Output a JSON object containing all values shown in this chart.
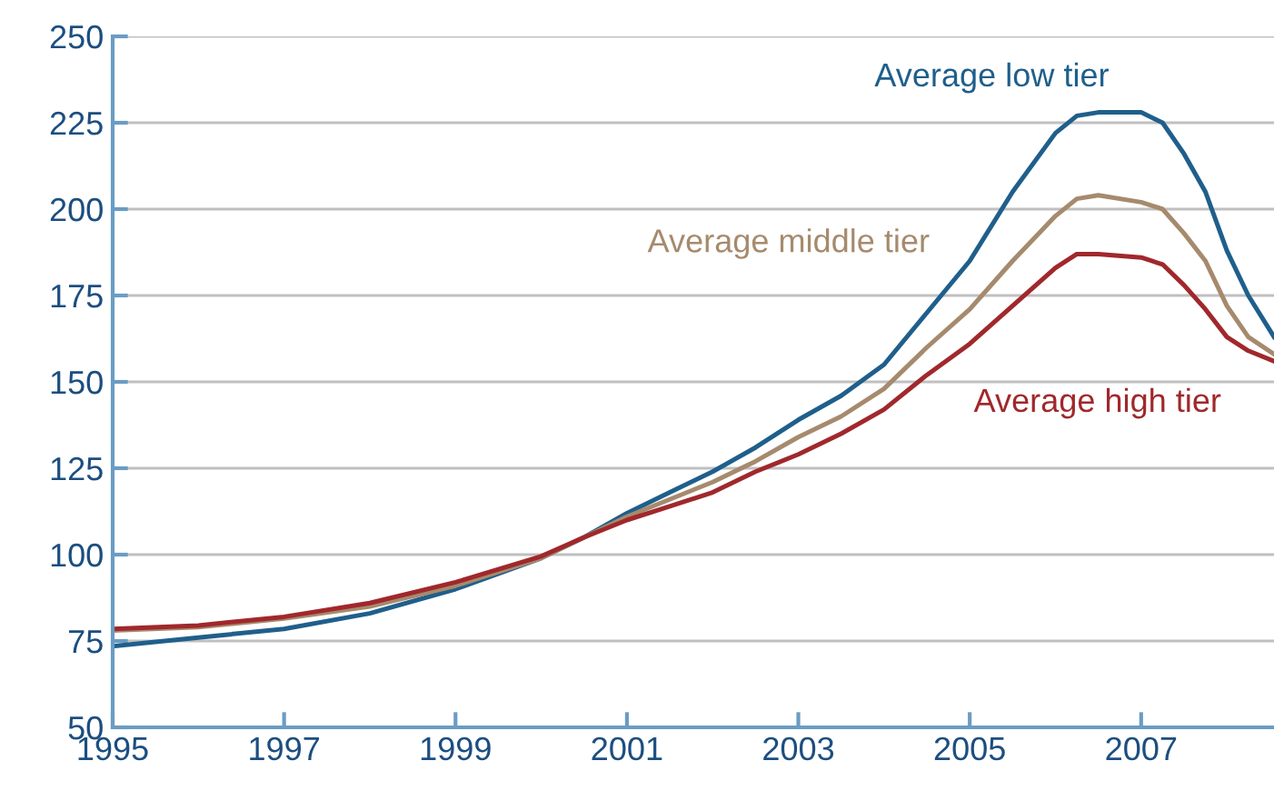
{
  "chart_data": {
    "type": "line",
    "xlim": [
      1995,
      2008.55
    ],
    "xticks": [
      1995,
      1997,
      1999,
      2001,
      2003,
      2005,
      2007
    ],
    "ylim": [
      50,
      250
    ],
    "yticks": [
      50,
      75,
      100,
      125,
      150,
      175,
      200,
      225,
      250
    ],
    "grid": "y",
    "legend": false,
    "series": [
      {
        "name": "Average low tier",
        "color": "#1f5f8b",
        "x": [
          1995,
          1996,
          1997,
          1998,
          1999,
          2000,
          2000.5,
          2001,
          2001.5,
          2002,
          2002.5,
          2003,
          2003.5,
          2004,
          2004.5,
          2005,
          2005.5,
          2006,
          2006.25,
          2006.5,
          2007,
          2007.25,
          2007.5,
          2007.75,
          2008,
          2008.25,
          2008.55
        ],
        "values": [
          73.5,
          76,
          78.5,
          83,
          90,
          99,
          105,
          112,
          118,
          124,
          131,
          139,
          146,
          155,
          170,
          185,
          205,
          222,
          227,
          228,
          228,
          225,
          216,
          205,
          188,
          175,
          163
        ]
      },
      {
        "name": "Average middle tier",
        "color": "#a68a6d",
        "x": [
          1995,
          1996,
          1997,
          1998,
          1999,
          2000,
          2000.5,
          2001,
          2001.5,
          2002,
          2002.5,
          2003,
          2003.5,
          2004,
          2004.5,
          2005,
          2005.5,
          2006,
          2006.25,
          2006.5,
          2007,
          2007.25,
          2007.5,
          2007.75,
          2008,
          2008.25,
          2008.55
        ],
        "values": [
          78,
          79,
          81.5,
          85,
          91,
          99,
          105,
          111,
          116,
          121,
          127,
          134,
          140,
          148,
          160,
          171,
          185,
          198,
          203,
          204,
          202,
          200,
          193,
          185,
          172,
          163,
          158
        ]
      },
      {
        "name": "Average high tier",
        "color": "#a0282c",
        "x": [
          1995,
          1996,
          1997,
          1998,
          1999,
          2000,
          2000.5,
          2001,
          2001.5,
          2002,
          2002.5,
          2003,
          2003.5,
          2004,
          2004.5,
          2005,
          2005.5,
          2006,
          2006.25,
          2006.5,
          2007,
          2007.25,
          2007.5,
          2007.75,
          2008,
          2008.25,
          2008.55
        ],
        "values": [
          78.5,
          79.5,
          82,
          86,
          92,
          99.5,
          105,
          110,
          114,
          118,
          124,
          129,
          135,
          142,
          152,
          161,
          172,
          183,
          187,
          187,
          186,
          184,
          178,
          171,
          163,
          159,
          156
        ]
      }
    ]
  }
}
